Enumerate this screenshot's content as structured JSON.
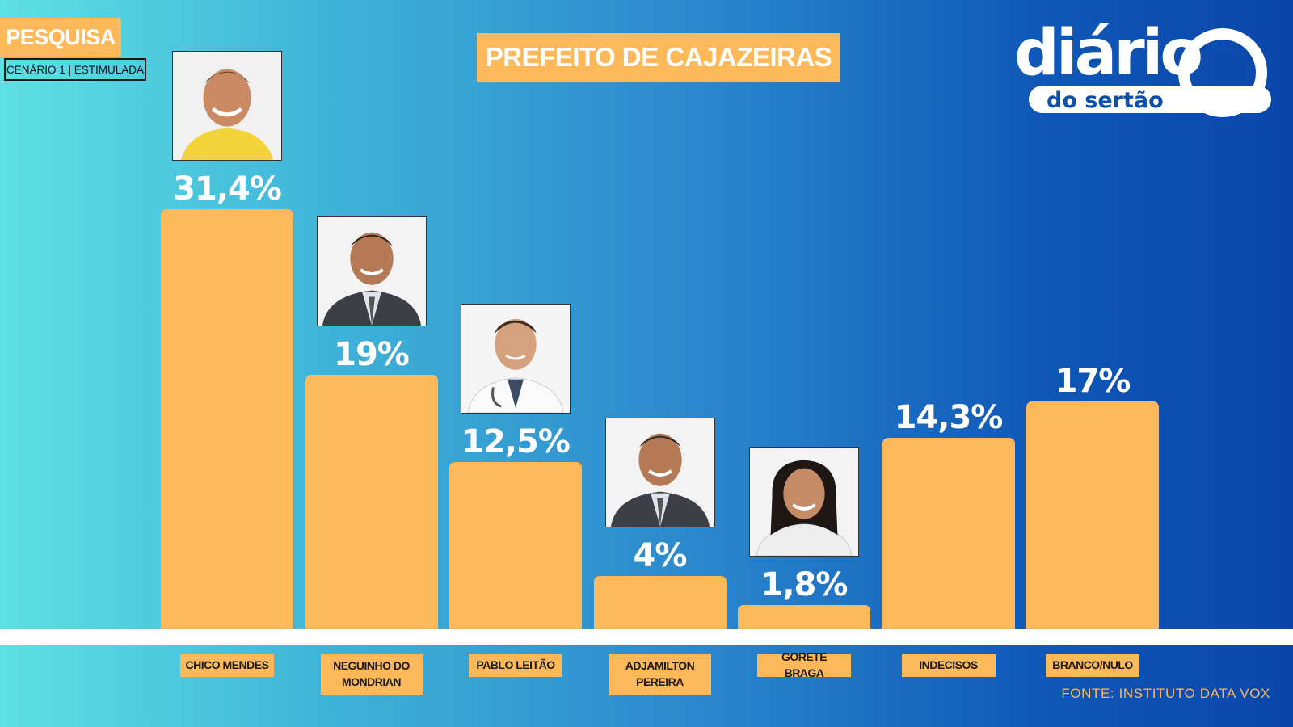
{
  "header": {
    "tag": "PESQUISA",
    "scenario": "CENÁRIO 1 | ESTIMULADA",
    "title": "PREFEITO DE CAJAZEIRAS"
  },
  "logo": {
    "line1": "diário",
    "line2": "do sertão"
  },
  "source": "FONTE: INSTITUTO DATA VOX",
  "colors": {
    "bar": "#fdb959",
    "background_left": "#5fe0e4",
    "background_right": "#0a46aa"
  },
  "chart_data": {
    "type": "bar",
    "title": "PREFEITO DE CAJAZEIRAS",
    "categories": [
      "CHICO MENDES",
      "NEGUINHO DO MONDRIAN",
      "PABLO LEITÃO",
      "ADJAMILTON PEREIRA",
      "GORETE BRAGA",
      "INDECISOS",
      "BRANCO/NULO"
    ],
    "values": [
      31.4,
      19,
      12.5,
      4,
      1.8,
      14.3,
      17
    ],
    "value_labels": [
      "31,4%",
      "19%",
      "12,5%",
      "4%",
      "1,8%",
      "14,3%",
      "17%"
    ],
    "has_photo": [
      true,
      true,
      true,
      true,
      true,
      false,
      false
    ],
    "photo_icons": [
      "man-yellow-shirt-portrait",
      "man-suit-portrait",
      "doctor-white-coat-portrait",
      "man-suit-portrait",
      "woman-white-blouse-portrait"
    ],
    "ylim": [
      0,
      31.4
    ],
    "grid": false,
    "legend": "none"
  }
}
